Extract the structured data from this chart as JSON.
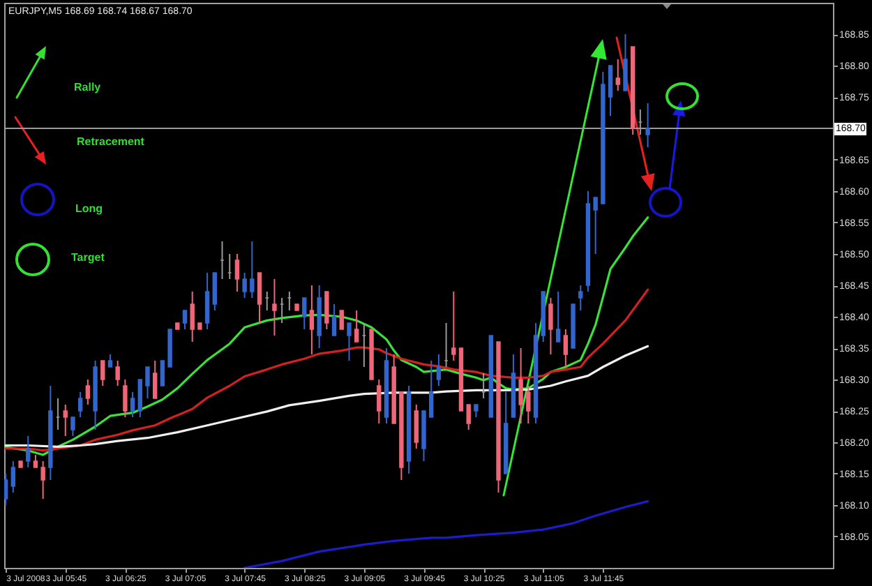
{
  "chart_data": {
    "type": "candlestick",
    "title": "EURJPY,M5 168.69 168.74 168.67 168.70",
    "annotations": [
      "Rally",
      "Retracement",
      "Long",
      "Target"
    ],
    "x": [
      "2008-07-03T05:05",
      "2008-07-03T05:10",
      "2008-07-03T05:15",
      "2008-07-03T05:20",
      "2008-07-03T05:25",
      "2008-07-03T05:30",
      "2008-07-03T05:35",
      "2008-07-03T05:40",
      "2008-07-03T05:45",
      "2008-07-03T05:50",
      "2008-07-03T05:55",
      "2008-07-03T06:00",
      "2008-07-03T06:05",
      "2008-07-03T06:10",
      "2008-07-03T06:15",
      "2008-07-03T06:20",
      "2008-07-03T06:25",
      "2008-07-03T06:30",
      "2008-07-03T06:35",
      "2008-07-03T06:40",
      "2008-07-03T06:45",
      "2008-07-03T06:50",
      "2008-07-03T06:55",
      "2008-07-03T07:00",
      "2008-07-03T07:05",
      "2008-07-03T07:10",
      "2008-07-03T07:15",
      "2008-07-03T07:20",
      "2008-07-03T07:25",
      "2008-07-03T07:30",
      "2008-07-03T07:35",
      "2008-07-03T07:40",
      "2008-07-03T07:45",
      "2008-07-03T07:50",
      "2008-07-03T07:55",
      "2008-07-03T08:00",
      "2008-07-03T08:05",
      "2008-07-03T08:10",
      "2008-07-03T08:15",
      "2008-07-03T08:20",
      "2008-07-03T08:25",
      "2008-07-03T08:30",
      "2008-07-03T08:35",
      "2008-07-03T08:40",
      "2008-07-03T08:45",
      "2008-07-03T08:50",
      "2008-07-03T08:55",
      "2008-07-03T09:00",
      "2008-07-03T09:05",
      "2008-07-03T09:10",
      "2008-07-03T09:15",
      "2008-07-03T09:20",
      "2008-07-03T09:25",
      "2008-07-03T09:30",
      "2008-07-03T09:35",
      "2008-07-03T09:40",
      "2008-07-03T09:45",
      "2008-07-03T09:50",
      "2008-07-03T09:55",
      "2008-07-03T10:00",
      "2008-07-03T10:05",
      "2008-07-03T10:10",
      "2008-07-03T10:15",
      "2008-07-03T10:20",
      "2008-07-03T10:25",
      "2008-07-03T10:30",
      "2008-07-03T10:35",
      "2008-07-03T10:40",
      "2008-07-03T10:45",
      "2008-07-03T10:50",
      "2008-07-03T10:55",
      "2008-07-03T11:00",
      "2008-07-03T11:05",
      "2008-07-03T11:10",
      "2008-07-03T11:15",
      "2008-07-03T11:20",
      "2008-07-03T11:25",
      "2008-07-03T11:30",
      "2008-07-03T11:35",
      "2008-07-03T11:40",
      "2008-07-03T11:45",
      "2008-07-03T11:50",
      "2008-07-03T11:55",
      "2008-07-03T12:00",
      "2008-07-03T12:05",
      "2008-07-03T12:10",
      "2008-07-03T12:15"
    ],
    "ohlc": [
      [
        168.11,
        168.15,
        168.1,
        168.14
      ],
      [
        168.13,
        168.17,
        168.12,
        168.16
      ],
      [
        168.17,
        168.17,
        168.16,
        168.16
      ],
      [
        168.17,
        168.21,
        168.16,
        168.19
      ],
      [
        168.17,
        168.18,
        168.16,
        168.16
      ],
      [
        168.16,
        168.17,
        168.11,
        168.14
      ],
      [
        168.16,
        168.29,
        168.14,
        168.25
      ],
      [
        168.24,
        168.27,
        168.22,
        168.24
      ],
      [
        168.25,
        168.26,
        168.21,
        168.24
      ],
      [
        168.22,
        168.24,
        168.21,
        168.24
      ],
      [
        168.25,
        168.28,
        168.24,
        168.27
      ],
      [
        168.29,
        168.3,
        168.26,
        168.27
      ],
      [
        168.25,
        168.33,
        168.22,
        168.32
      ],
      [
        168.33,
        168.33,
        168.29,
        168.3
      ],
      [
        168.32,
        168.34,
        168.32,
        168.33
      ],
      [
        168.32,
        168.33,
        168.29,
        168.3
      ],
      [
        168.29,
        168.3,
        168.24,
        168.25
      ],
      [
        168.25,
        168.28,
        168.24,
        168.27
      ],
      [
        168.25,
        168.3,
        168.24,
        168.3
      ],
      [
        168.29,
        168.32,
        168.27,
        168.32
      ],
      [
        168.31,
        168.33,
        168.27,
        168.27
      ],
      [
        168.29,
        168.33,
        168.29,
        168.33
      ],
      [
        168.32,
        168.38,
        168.32,
        168.38
      ],
      [
        168.39,
        168.39,
        168.38,
        168.38
      ],
      [
        168.39,
        168.41,
        168.38,
        168.41
      ],
      [
        168.42,
        168.44,
        168.36,
        168.38
      ],
      [
        168.39,
        168.39,
        168.38,
        168.38
      ],
      [
        168.39,
        168.47,
        168.38,
        168.44
      ],
      [
        168.42,
        168.47,
        168.41,
        168.47
      ],
      [
        168.49,
        168.52,
        168.46,
        168.49
      ],
      [
        168.47,
        168.5,
        168.46,
        168.47
      ],
      [
        168.49,
        168.5,
        168.44,
        168.46
      ],
      [
        168.44,
        168.47,
        168.43,
        168.46
      ],
      [
        168.44,
        168.52,
        168.43,
        168.46
      ],
      [
        168.47,
        168.47,
        168.39,
        168.42
      ],
      [
        168.43,
        168.44,
        168.41,
        168.43
      ],
      [
        168.42,
        168.46,
        168.37,
        168.41
      ],
      [
        168.42,
        168.43,
        168.39,
        168.42
      ],
      [
        168.43,
        168.44,
        168.41,
        168.43
      ],
      [
        168.42,
        168.42,
        168.41,
        168.41
      ],
      [
        168.4,
        168.43,
        168.38,
        168.43
      ],
      [
        168.41,
        168.45,
        168.34,
        168.38
      ],
      [
        168.37,
        168.45,
        168.35,
        168.43
      ],
      [
        168.44,
        168.44,
        168.38,
        168.39
      ],
      [
        168.37,
        168.42,
        168.37,
        168.4
      ],
      [
        168.41,
        168.41,
        168.38,
        168.38
      ],
      [
        168.37,
        168.39,
        168.33,
        168.39
      ],
      [
        168.38,
        168.41,
        168.36,
        168.36
      ],
      [
        168.37,
        168.39,
        168.32,
        168.37
      ],
      [
        168.38,
        168.38,
        168.3,
        168.3
      ],
      [
        168.29,
        168.3,
        168.23,
        168.25
      ],
      [
        168.24,
        168.35,
        168.23,
        168.33
      ],
      [
        168.32,
        168.34,
        168.23,
        168.23
      ],
      [
        168.28,
        168.28,
        168.14,
        168.16
      ],
      [
        168.17,
        168.29,
        168.15,
        168.28
      ],
      [
        168.25,
        168.26,
        168.19,
        168.2
      ],
      [
        168.19,
        168.25,
        168.17,
        168.25
      ],
      [
        168.24,
        168.33,
        168.24,
        168.28
      ],
      [
        168.3,
        168.34,
        168.29,
        168.32
      ],
      [
        168.33,
        168.39,
        168.32,
        168.33
      ],
      [
        168.35,
        168.44,
        168.33,
        168.34
      ],
      [
        168.35,
        168.35,
        168.25,
        168.25
      ],
      [
        168.26,
        168.26,
        168.22,
        168.23
      ],
      [
        168.25,
        168.26,
        168.24,
        168.26
      ],
      [
        168.28,
        168.31,
        168.27,
        168.28
      ],
      [
        168.24,
        168.37,
        168.24,
        168.37
      ],
      [
        168.36,
        168.36,
        168.12,
        168.14
      ],
      [
        168.15,
        168.28,
        168.15,
        168.23
      ],
      [
        168.24,
        168.34,
        168.24,
        168.31
      ],
      [
        168.3,
        168.35,
        168.23,
        168.26
      ],
      [
        168.28,
        168.29,
        168.23,
        168.25
      ],
      [
        168.24,
        168.39,
        168.23,
        168.37
      ],
      [
        168.37,
        168.44,
        168.36,
        168.44
      ],
      [
        168.42,
        168.43,
        168.34,
        168.38
      ],
      [
        168.36,
        168.44,
        168.36,
        168.38
      ],
      [
        168.37,
        168.38,
        168.32,
        168.34
      ],
      [
        168.35,
        168.42,
        168.35,
        168.42
      ],
      [
        168.43,
        168.45,
        168.41,
        168.44
      ],
      [
        168.45,
        168.6,
        168.44,
        168.58
      ],
      [
        168.57,
        168.59,
        168.5,
        168.59
      ],
      [
        168.58,
        168.79,
        168.58,
        168.77
      ],
      [
        168.75,
        168.8,
        168.72,
        168.8
      ],
      [
        168.78,
        168.81,
        168.76,
        168.77
      ],
      [
        168.76,
        168.85,
        168.76,
        168.81
      ],
      [
        168.83,
        168.83,
        168.69,
        168.7
      ],
      [
        168.71,
        168.73,
        168.69,
        168.71
      ],
      [
        168.69,
        168.74,
        168.67,
        168.7
      ]
    ],
    "colors": [
      "#3366cc",
      "#3366cc",
      "#ee6677",
      "#3366cc",
      "#ee6677",
      "#ee6677",
      "#3366cc",
      "#999999",
      "#ee6677",
      "#3366cc",
      "#3366cc",
      "#ee6677",
      "#3366cc",
      "#ee6677",
      "#3366cc",
      "#ee6677",
      "#ee6677",
      "#3366cc",
      "#3366cc",
      "#3366cc",
      "#ee6677",
      "#3366cc",
      "#3366cc",
      "#ee6677",
      "#3366cc",
      "#ee6677",
      "#ee6677",
      "#3366cc",
      "#3366cc",
      "#999999",
      "#999999",
      "#ee6677",
      "#3366cc",
      "#3366cc",
      "#ee6677",
      "#999999",
      "#ee6677",
      "#999999",
      "#999999",
      "#ee6677",
      "#3366cc",
      "#ee6677",
      "#3366cc",
      "#ee6677",
      "#3366cc",
      "#ee6677",
      "#3366cc",
      "#ee6677",
      "#999999",
      "#ee6677",
      "#ee6677",
      "#3366cc",
      "#ee6677",
      "#ee6677",
      "#3366cc",
      "#ee6677",
      "#3366cc",
      "#3366cc",
      "#3366cc",
      "#999999",
      "#ee6677",
      "#ee6677",
      "#ee6677",
      "#3366cc",
      "#999999",
      "#3366cc",
      "#ee6677",
      "#3366cc",
      "#3366cc",
      "#ee6677",
      "#ee6677",
      "#3366cc",
      "#3366cc",
      "#ee6677",
      "#3366cc",
      "#ee6677",
      "#3366cc",
      "#3366cc",
      "#3366cc",
      "#3366cc",
      "#3366cc",
      "#3366cc",
      "#ee6677",
      "#3366cc",
      "#ee6677",
      "#999999",
      "#3366cc"
    ],
    "series": [
      {
        "type": "line",
        "color": "#3ce03c",
        "x": [
          "2008-07-03T05:05",
          "2008-07-03T05:20",
          "2008-07-03T05:30",
          "2008-07-03T05:40",
          "2008-07-03T05:50",
          "2008-07-03T06:05",
          "2008-07-03T06:15",
          "2008-07-03T06:30",
          "2008-07-03T06:40",
          "2008-07-03T06:50",
          "2008-07-03T07:00",
          "2008-07-03T07:10",
          "2008-07-03T07:20",
          "2008-07-03T07:35",
          "2008-07-03T07:45",
          "2008-07-03T08:00",
          "2008-07-03T08:10",
          "2008-07-03T08:25",
          "2008-07-03T08:35",
          "2008-07-03T08:50",
          "2008-07-03T09:00",
          "2008-07-03T09:10",
          "2008-07-03T09:20",
          "2008-07-03T09:25",
          "2008-07-03T09:30",
          "2008-07-03T09:40",
          "2008-07-03T09:45",
          "2008-07-03T10:00",
          "2008-07-03T10:10",
          "2008-07-03T10:20",
          "2008-07-03T10:25",
          "2008-07-03T10:30",
          "2008-07-03T10:35",
          "2008-07-03T10:40",
          "2008-07-03T10:45",
          "2008-07-03T10:55",
          "2008-07-03T11:05",
          "2008-07-03T11:10",
          "2008-07-03T11:20",
          "2008-07-03T11:30",
          "2008-07-03T11:35",
          "2008-07-03T11:40",
          "2008-07-03T11:45",
          "2008-07-03T11:50",
          "2008-07-03T12:00",
          "2008-07-03T12:05",
          "2008-07-03T12:15"
        ],
        "values": [
          168.192,
          168.187,
          168.18,
          168.193,
          168.204,
          168.225,
          168.242,
          168.247,
          168.257,
          168.268,
          168.286,
          168.309,
          168.331,
          168.357,
          168.383,
          168.394,
          168.398,
          168.402,
          168.403,
          168.4,
          168.394,
          168.383,
          168.364,
          168.346,
          168.331,
          168.32,
          168.312,
          168.316,
          168.309,
          168.303,
          168.299,
          168.303,
          168.294,
          168.286,
          168.284,
          168.286,
          168.301,
          168.312,
          168.32,
          168.331,
          168.357,
          168.387,
          168.431,
          168.476,
          168.51,
          168.528,
          168.558
        ]
      },
      {
        "type": "line",
        "color": "#d42020",
        "x": [
          "2008-07-03T05:05",
          "2008-07-03T05:20",
          "2008-07-03T05:30",
          "2008-07-03T05:40",
          "2008-07-03T05:55",
          "2008-07-03T06:05",
          "2008-07-03T06:20",
          "2008-07-03T06:30",
          "2008-07-03T06:45",
          "2008-07-03T06:55",
          "2008-07-03T07:10",
          "2008-07-03T07:20",
          "2008-07-03T07:35",
          "2008-07-03T07:45",
          "2008-07-03T08:00",
          "2008-07-03T08:10",
          "2008-07-03T08:25",
          "2008-07-03T08:35",
          "2008-07-03T08:50",
          "2008-07-03T09:00",
          "2008-07-03T09:05",
          "2008-07-03T09:15",
          "2008-07-03T09:20",
          "2008-07-03T09:30",
          "2008-07-03T09:45",
          "2008-07-03T09:55",
          "2008-07-03T10:05",
          "2008-07-03T10:20",
          "2008-07-03T10:30",
          "2008-07-03T10:45",
          "2008-07-03T10:55",
          "2008-07-03T11:05",
          "2008-07-03T11:10",
          "2008-07-03T11:20",
          "2008-07-03T11:30",
          "2008-07-03T11:35",
          "2008-07-03T11:45",
          "2008-07-03T12:00",
          "2008-07-03T12:15"
        ],
        "values": [
          168.19,
          168.19,
          168.187,
          168.19,
          168.195,
          168.204,
          168.212,
          168.219,
          168.227,
          168.238,
          168.253,
          168.271,
          168.29,
          168.305,
          168.316,
          168.324,
          168.333,
          168.341,
          168.346,
          168.351,
          168.351,
          168.348,
          168.342,
          168.333,
          168.324,
          168.321,
          168.316,
          168.312,
          168.306,
          168.303,
          168.303,
          168.306,
          168.312,
          168.316,
          168.32,
          168.335,
          168.357,
          168.394,
          168.443
        ]
      },
      {
        "type": "line",
        "color": "#f0f0f0",
        "x": [
          "2008-07-03T05:05",
          "2008-07-03T05:20",
          "2008-07-03T05:40",
          "2008-07-03T05:55",
          "2008-07-03T06:05",
          "2008-07-03T06:20",
          "2008-07-03T06:40",
          "2008-07-03T07:00",
          "2008-07-03T07:20",
          "2008-07-03T07:40",
          "2008-07-03T08:00",
          "2008-07-03T08:15",
          "2008-07-03T08:35",
          "2008-07-03T08:55",
          "2008-07-03T09:05",
          "2008-07-03T09:25",
          "2008-07-03T09:50",
          "2008-07-03T10:00",
          "2008-07-03T10:20",
          "2008-07-03T10:40",
          "2008-07-03T10:55",
          "2008-07-03T11:10",
          "2008-07-03T11:20",
          "2008-07-03T11:35",
          "2008-07-03T11:45",
          "2008-07-03T12:00",
          "2008-07-03T12:15"
        ],
        "values": [
          168.195,
          168.195,
          168.193,
          168.195,
          168.197,
          168.202,
          168.207,
          168.216,
          168.227,
          168.238,
          168.249,
          168.259,
          168.266,
          168.274,
          168.277,
          168.279,
          168.279,
          168.281,
          168.283,
          168.283,
          168.284,
          168.29,
          168.297,
          168.306,
          168.32,
          168.338,
          168.353
        ]
      },
      {
        "type": "line",
        "color": "#1c1cc8",
        "x": [
          "2008-07-03T07:45",
          "2008-07-03T08:10",
          "2008-07-03T08:35",
          "2008-07-03T09:05",
          "2008-07-03T09:25",
          "2008-07-03T09:50",
          "2008-07-03T10:00",
          "2008-07-03T10:20",
          "2008-07-03T10:45",
          "2008-07-03T11:05",
          "2008-07-03T11:25",
          "2008-07-03T11:40",
          "2008-07-03T12:00",
          "2008-07-03T12:15"
        ],
        "values": [
          168.0,
          168.011,
          168.026,
          168.037,
          168.043,
          168.048,
          168.048,
          168.052,
          168.056,
          168.061,
          168.071,
          168.083,
          168.097,
          168.106
        ]
      }
    ],
    "xlim": [
      "2008-07-03T05:04",
      "2008-07-03T14:19"
    ],
    "xticks": [
      {
        "value": "2008-07-03T05:05",
        "label": "3 Jul 2008"
      },
      {
        "value": "2008-07-03T05:45",
        "label": "3 Jul 05:45"
      },
      {
        "value": "2008-07-03T06:25",
        "label": "3 Jul 06:25"
      },
      {
        "value": "2008-07-03T07:05",
        "label": "3 Jul 07:05"
      },
      {
        "value": "2008-07-03T07:45",
        "label": "3 Jul 07:45"
      },
      {
        "value": "2008-07-03T08:25",
        "label": "3 Jul 08:25"
      },
      {
        "value": "2008-07-03T09:05",
        "label": "3 Jul 09:05"
      },
      {
        "value": "2008-07-03T09:45",
        "label": "3 Jul 09:45"
      },
      {
        "value": "2008-07-03T10:25",
        "label": "3 Jul 10:25"
      },
      {
        "value": "2008-07-03T11:05",
        "label": "3 Jul 11:05"
      },
      {
        "value": "2008-07-03T11:45",
        "label": "3 Jul 11:45"
      }
    ],
    "ylim": [
      168.0,
      168.9
    ],
    "yticks": [
      168.05,
      {
        "value": 168.1,
        "label": "168.10"
      },
      168.15,
      {
        "value": 168.2,
        "label": "168.20"
      },
      168.25,
      {
        "value": 168.3,
        "label": "168.30"
      },
      168.35,
      {
        "value": 168.4,
        "label": "168.40"
      },
      168.45,
      {
        "value": 168.5,
        "label": "168.50"
      },
      168.55,
      {
        "value": 168.6,
        "label": "168.60"
      },
      168.65,
      {
        "value": 168.7,
        "label": null
      },
      168.75,
      {
        "value": 168.8,
        "label": "168.80"
      },
      168.85
    ],
    "ref_lines": [
      {
        "axis": "y",
        "value": 168.7,
        "label": "168.70",
        "color": "#9a9a9a"
      }
    ]
  }
}
